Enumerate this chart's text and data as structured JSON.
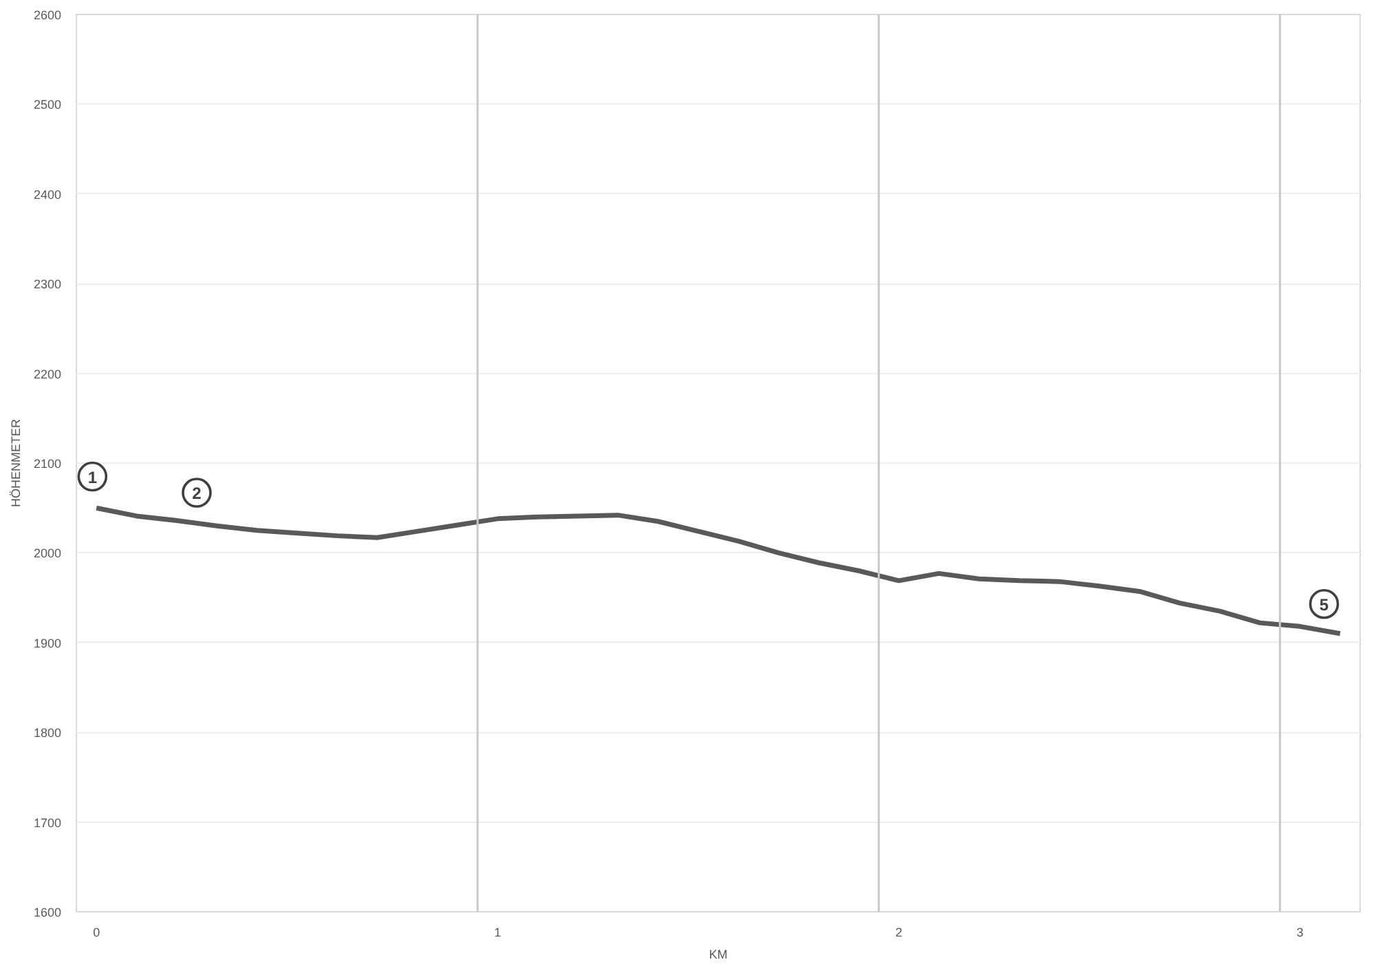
{
  "chart_data": {
    "type": "line",
    "xlabel": "KM",
    "ylabel": "HÖHENMETER",
    "xlim": [
      -0.05,
      3.15
    ],
    "ylim": [
      1600,
      2600
    ],
    "xticks": [
      0,
      1,
      2,
      3
    ],
    "yticks": [
      1600,
      1700,
      1800,
      1900,
      2000,
      2100,
      2200,
      2300,
      2400,
      2500,
      2600
    ],
    "grid": "y",
    "marker": "none",
    "line_style": "solid",
    "series": [
      {
        "color": "#595959",
        "x": [
          0,
          0.1,
          0.2,
          0.3,
          0.4,
          0.5,
          0.6,
          0.7,
          0.8,
          0.9,
          1.0,
          1.1,
          1.2,
          1.3,
          1.4,
          1.5,
          1.6,
          1.7,
          1.8,
          1.9,
          2.0,
          2.1,
          2.2,
          2.3,
          2.4,
          2.5,
          2.6,
          2.7,
          2.8,
          2.9,
          3.0,
          3.1
        ],
        "values": [
          2050,
          2041,
          2036,
          2030,
          2025,
          2022,
          2019,
          2017,
          2024,
          2031,
          2038,
          2040,
          2041,
          2042,
          2035,
          2024,
          2013,
          2000,
          1989,
          1980,
          1969,
          1977,
          1971,
          1969,
          1968,
          1963,
          1957,
          1944,
          1935,
          1922,
          1918,
          1910
        ]
      }
    ],
    "ref_lines": [
      {
        "axis": "x",
        "value": 0.95,
        "color": "#c8c8c8"
      },
      {
        "axis": "x",
        "value": 1.95,
        "color": "#c8c8c8"
      },
      {
        "axis": "x",
        "value": 2.95,
        "color": "#c8c8c8"
      }
    ],
    "annotations": [
      {
        "text": "1",
        "x": -0.01,
        "y": 2085
      },
      {
        "text": "2",
        "x": 0.25,
        "y": 2067
      },
      {
        "text": "5",
        "x": 3.06,
        "y": 1943
      }
    ]
  }
}
